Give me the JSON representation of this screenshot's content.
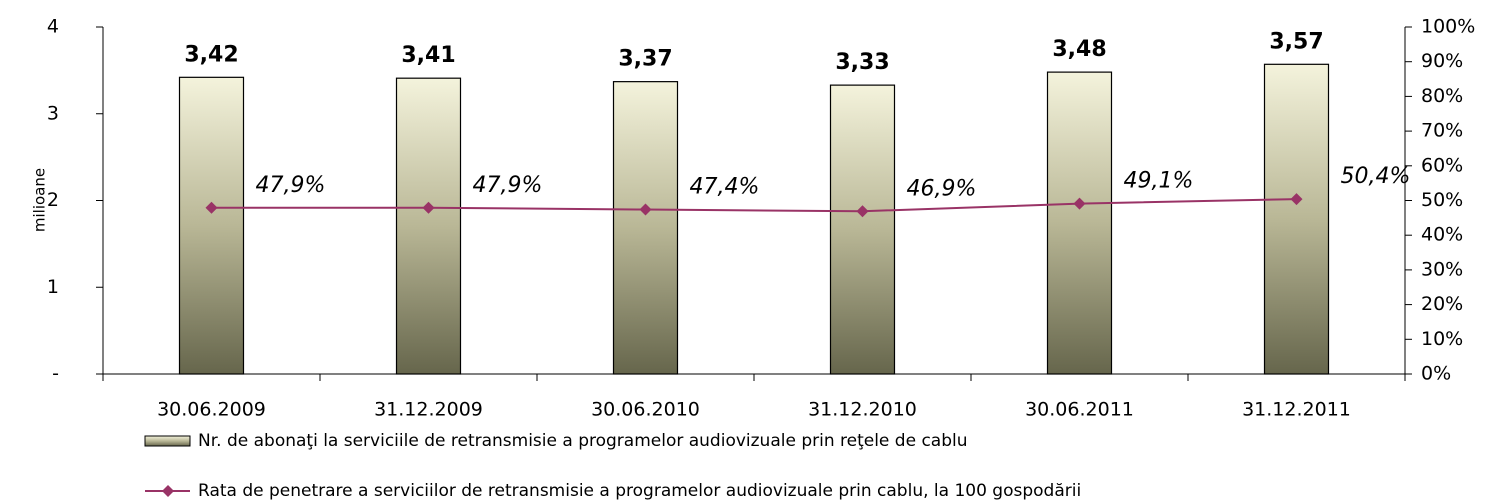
{
  "chart_data": {
    "type": "bar",
    "y_label": "milioane",
    "categories": [
      "30.06.2009",
      "31.12.2009",
      "30.06.2010",
      "31.12.2010",
      "30.06.2011",
      "31.12.2011"
    ],
    "series": [
      {
        "name": "Nr. de abonaţi la serviciile de retransmisie a programelor audiovizuale prin reţele de cablu",
        "type": "bar",
        "color": "#8a8a6a",
        "values": [
          3.42,
          3.41,
          3.37,
          3.33,
          3.48,
          3.57
        ],
        "value_labels": [
          "3,42",
          "3,41",
          "3,37",
          "3,33",
          "3,48",
          "3,57"
        ]
      },
      {
        "name": "Rata de penetrare a serviciilor de retransmisie a programelor audiovizuale prin cablu, la 100 gospodării",
        "type": "line",
        "axis": "y2",
        "color": "#993366",
        "values": [
          47.9,
          47.9,
          47.4,
          46.9,
          49.1,
          50.4
        ],
        "value_labels": [
          "47,9%",
          "47,9%",
          "47,4%",
          "46,9%",
          "49,1%",
          "50,4%"
        ]
      }
    ],
    "ylim": [
      0,
      4
    ],
    "yticks": [
      {
        "value": 0,
        "label": "-"
      },
      1,
      2,
      3,
      4
    ],
    "y2lim": [
      0,
      100
    ],
    "y2ticks": [
      {
        "value": 0,
        "label": "0%"
      },
      {
        "value": 10,
        "label": "10%"
      },
      {
        "value": 20,
        "label": "20%"
      },
      {
        "value": 30,
        "label": "30%"
      },
      {
        "value": 40,
        "label": "40%"
      },
      {
        "value": 50,
        "label": "50%"
      },
      {
        "value": 60,
        "label": "60%"
      },
      {
        "value": 70,
        "label": "70%"
      },
      {
        "value": 80,
        "label": "80%"
      },
      {
        "value": 90,
        "label": "90%"
      },
      {
        "value": 100,
        "label": "100%"
      }
    ],
    "grid": false
  }
}
